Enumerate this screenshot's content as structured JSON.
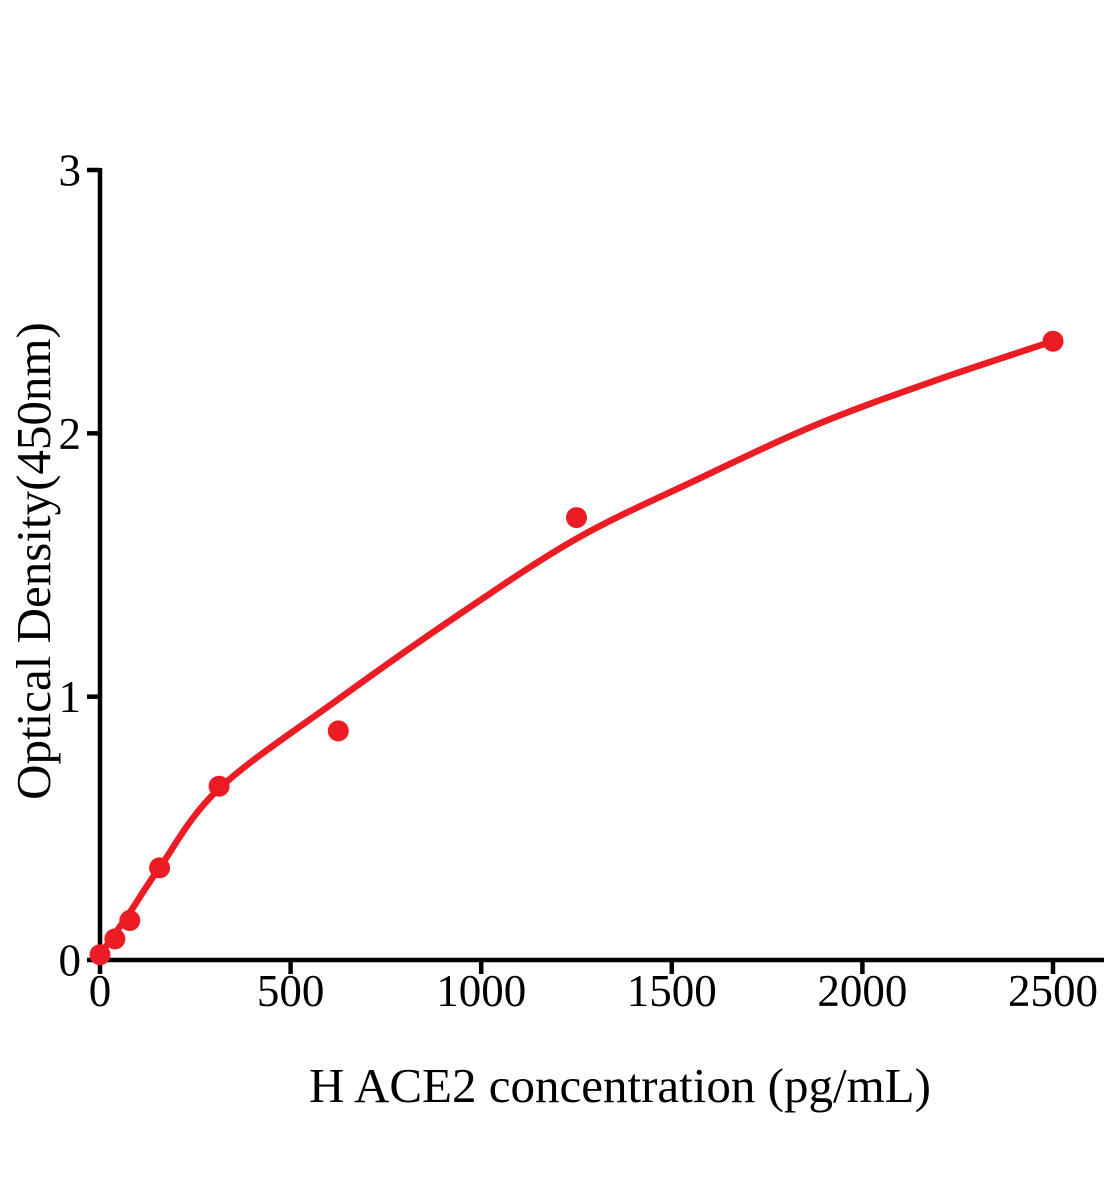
{
  "figure": {
    "background": "#ffffff"
  },
  "chart_data": {
    "type": "scatter",
    "title": "",
    "xlabel": "H ACE2 concentration (pg/mL)",
    "ylabel": "Optical Density(450nm)",
    "x_ticks": [
      0,
      500,
      1000,
      1500,
      2000,
      2500
    ],
    "y_ticks": [
      0,
      1,
      2,
      3
    ],
    "xlim": [
      0,
      2660
    ],
    "ylim": [
      0,
      3
    ],
    "grid": false,
    "legend": "none",
    "axis_color": "#000000",
    "point_color": "#ec1c24",
    "curve_color": "#ec1c24",
    "points": [
      {
        "x": 0,
        "y": 0.02
      },
      {
        "x": 39.06,
        "y": 0.08
      },
      {
        "x": 78.13,
        "y": 0.15
      },
      {
        "x": 156.25,
        "y": 0.35
      },
      {
        "x": 312.5,
        "y": 0.66
      },
      {
        "x": 625,
        "y": 0.87
      },
      {
        "x": 1250,
        "y": 1.68
      },
      {
        "x": 2500,
        "y": 2.35
      }
    ],
    "curve_points": [
      {
        "x": 0,
        "y": 0.02
      },
      {
        "x": 78,
        "y": 0.18
      },
      {
        "x": 156,
        "y": 0.35
      },
      {
        "x": 312,
        "y": 0.65
      },
      {
        "x": 625,
        "y": 0.99
      },
      {
        "x": 940,
        "y": 1.31
      },
      {
        "x": 1250,
        "y": 1.6
      },
      {
        "x": 1560,
        "y": 1.82
      },
      {
        "x": 1875,
        "y": 2.03
      },
      {
        "x": 2190,
        "y": 2.2
      },
      {
        "x": 2500,
        "y": 2.35
      }
    ]
  }
}
